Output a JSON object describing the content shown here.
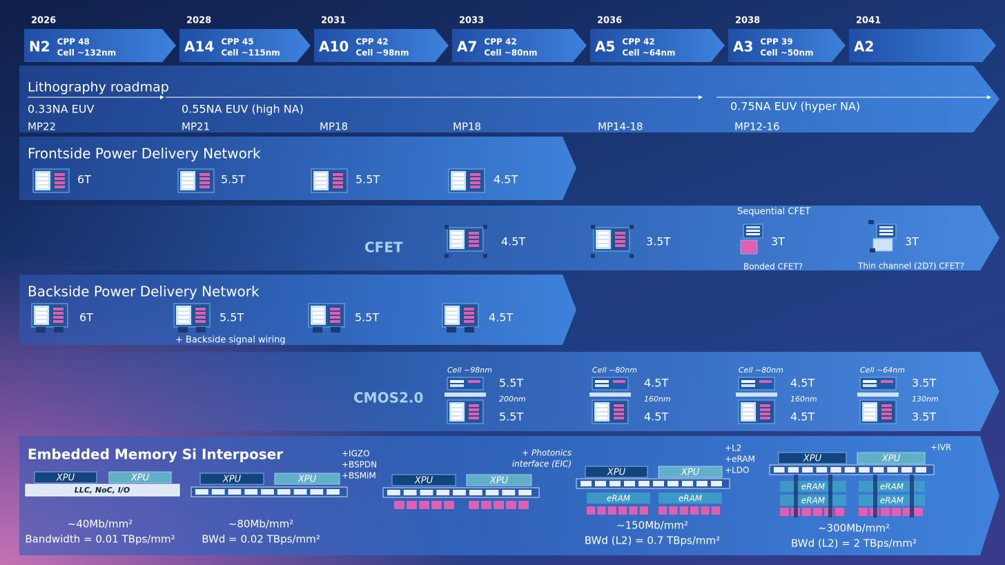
{
  "timeline": [
    {
      "year": "2026",
      "node": "N2",
      "cpp": "CPP 48",
      "cell": "Cell ~132nm"
    },
    {
      "year": "2028",
      "node": "A14",
      "cpp": "CPP 45",
      "cell": "Cell ~115nm"
    },
    {
      "year": "2031",
      "node": "A10",
      "cpp": "CPP 42",
      "cell": "Cell ~98nm"
    },
    {
      "year": "2033",
      "node": "A7",
      "cpp": "CPP 42",
      "cell": "Cell ~80nm"
    },
    {
      "year": "2036",
      "node": "A5",
      "cpp": "CPP 42",
      "cell": "Cell ~64nm"
    },
    {
      "year": "2038",
      "node": "A3",
      "cpp": "CPP 39",
      "cell": "Cell ~50nm"
    },
    {
      "year": "2041",
      "node": "A2"
    }
  ],
  "lithography": {
    "title": "Lithography roadmap",
    "na": [
      "0.33NA EUV",
      "0.55NA EUV (high NA)",
      "0.75NA EUV (hyper NA)"
    ],
    "pitch": [
      "MP22",
      "MP21",
      "MP18",
      "MP18",
      "MP14-18",
      "MP12-16"
    ]
  },
  "fspdn": {
    "title": "Frontside Power Delivery Network",
    "tracks": [
      "6T",
      "5.5T",
      "5.5T",
      "4.5T"
    ]
  },
  "cfet": {
    "label": "CFET",
    "tracks": [
      "4.5T",
      "3.5T",
      "3T",
      "3T"
    ],
    "notes": [
      "Sequential CFET",
      "Bonded CFET?",
      "Thin channel (2D?) CFET?"
    ]
  },
  "bspdn": {
    "title": "Backside Power Delivery Network",
    "tracks": [
      "6T",
      "5.5T",
      "5.5T",
      "4.5T"
    ],
    "note": "+ Backside signal wiring"
  },
  "cmos2": {
    "label": "CMOS2.0",
    "items": [
      {
        "cell": "Cell ~98nm",
        "top": "5.5T",
        "pitch": "200nm",
        "bottom": "5.5T"
      },
      {
        "cell": "Cell ~80nm",
        "top": "4.5T",
        "pitch": "160nm",
        "bottom": "4.5T"
      },
      {
        "cell": "Cell ~80nm",
        "top": "4.5T",
        "pitch": "160nm",
        "bottom": "4.5T"
      },
      {
        "cell": "Cell ~64nm",
        "top": "3.5T",
        "pitch": "130nm",
        "bottom": "3.5T"
      }
    ]
  },
  "memory": {
    "title": "Embedded Memory Si Interposer",
    "xpu": "XPU",
    "eram": "eRAM",
    "base": "LLC, NoC, I/O",
    "notes": [
      [
        "+IGZO",
        "+BSPDN",
        "+BSMiM"
      ],
      [
        "+ Photonics",
        "interface (EIC)"
      ],
      [
        "+L2",
        "+eRAM",
        "+LDO"
      ],
      [
        "+IVR"
      ]
    ],
    "metrics": [
      {
        "density": "~40Mb/mm²",
        "bw": "Bandwidth = 0.01 TBps/mm²"
      },
      {
        "density": "~80Mb/mm²",
        "bw": "BWd = 0.02 TBps/mm²"
      },
      {
        "density": "~150Mb/mm²",
        "bw": "BWd (L2) = 0.7 TBps/mm²"
      },
      {
        "density": "~300Mb/mm²",
        "bw": "BWd (L2) = 2 TBps/mm²"
      }
    ]
  }
}
